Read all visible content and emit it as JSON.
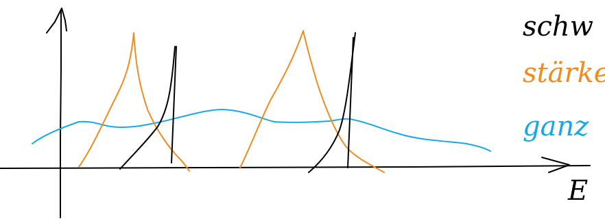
{
  "curve_labels": [
    "schw",
    "stärke",
    "ganz"
  ],
  "axis_label": "E"
}
